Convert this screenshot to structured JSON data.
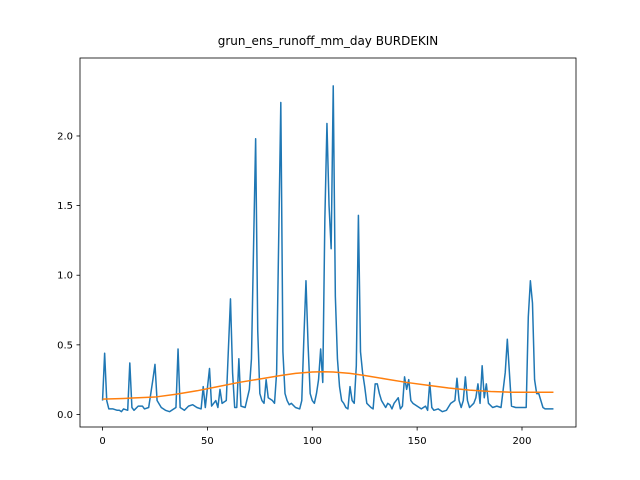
{
  "chart_data": {
    "type": "line",
    "title": "grun_ens_runoff_mm_day BURDEKIN",
    "xlim": [
      -10.75,
      225.75
    ],
    "xticks": [
      0,
      50,
      100,
      150,
      200
    ],
    "ylim": [
      -0.09,
      2.56
    ],
    "yticks": [
      {
        "value": 0,
        "label": "0.0"
      },
      0.5,
      {
        "value": 1,
        "label": "1.0"
      },
      1.5,
      {
        "value": 2,
        "label": "2.0"
      }
    ],
    "grid": false,
    "series": [
      {
        "color": "#1f77b4",
        "x": [
          0,
          1,
          2,
          3,
          5,
          7,
          8,
          9,
          10,
          12,
          13,
          14,
          15,
          17,
          19,
          20,
          22,
          24,
          25,
          26,
          28,
          30,
          32,
          34,
          35,
          36,
          37,
          39,
          41,
          43,
          45,
          47,
          48,
          49,
          51,
          52,
          54,
          55,
          56,
          57,
          59,
          61,
          62,
          63,
          64,
          65,
          66,
          68,
          70,
          71,
          72,
          73,
          74,
          75,
          76,
          77,
          78,
          79,
          81,
          82,
          83,
          85,
          86,
          87,
          88,
          89,
          90,
          92,
          94,
          95,
          96,
          97,
          98,
          99,
          100,
          101,
          102,
          103,
          104,
          105,
          106,
          107,
          108,
          109,
          110,
          111,
          112,
          113,
          114,
          115,
          116,
          117,
          118,
          119,
          120,
          121,
          122,
          123,
          124,
          125,
          126,
          128,
          129,
          130,
          131,
          132,
          133,
          135,
          136,
          137,
          138,
          139,
          140,
          141,
          142,
          143,
          144,
          145,
          146,
          147,
          148,
          150,
          152,
          154,
          155,
          156,
          157,
          158,
          160,
          162,
          164,
          166,
          168,
          169,
          170,
          171,
          172,
          173,
          174,
          175,
          177,
          178,
          179,
          180,
          181,
          182,
          183,
          184,
          186,
          188,
          190,
          192,
          193,
          194,
          195,
          197,
          199,
          201,
          202,
          203,
          204,
          205,
          206,
          207,
          208,
          209,
          210,
          211,
          213,
          215
        ],
        "values": [
          0.1,
          0.44,
          0.1,
          0.04,
          0.04,
          0.03,
          0.03,
          0.02,
          0.04,
          0.03,
          0.37,
          0.05,
          0.03,
          0.06,
          0.06,
          0.04,
          0.05,
          0.25,
          0.36,
          0.1,
          0.05,
          0.03,
          0.02,
          0.04,
          0.05,
          0.47,
          0.05,
          0.03,
          0.06,
          0.07,
          0.05,
          0.04,
          0.2,
          0.05,
          0.33,
          0.06,
          0.1,
          0.05,
          0.18,
          0.08,
          0.1,
          0.83,
          0.3,
          0.05,
          0.05,
          0.4,
          0.06,
          0.05,
          0.18,
          0.4,
          1.2,
          1.98,
          0.6,
          0.15,
          0.1,
          0.08,
          0.25,
          0.12,
          0.1,
          0.08,
          0.3,
          2.24,
          0.45,
          0.15,
          0.1,
          0.07,
          0.08,
          0.05,
          0.04,
          0.1,
          0.55,
          0.96,
          0.5,
          0.15,
          0.1,
          0.08,
          0.15,
          0.25,
          0.47,
          0.23,
          1.4,
          2.09,
          1.5,
          1.19,
          2.36,
          0.85,
          0.4,
          0.2,
          0.1,
          0.08,
          0.05,
          0.04,
          0.2,
          0.1,
          0.08,
          0.35,
          1.43,
          0.45,
          0.3,
          0.2,
          0.08,
          0.05,
          0.04,
          0.22,
          0.22,
          0.15,
          0.1,
          0.05,
          0.08,
          0.07,
          0.04,
          0.08,
          0.1,
          0.12,
          0.04,
          0.06,
          0.27,
          0.18,
          0.25,
          0.1,
          0.08,
          0.06,
          0.04,
          0.06,
          0.03,
          0.23,
          0.05,
          0.03,
          0.04,
          0.02,
          0.03,
          0.08,
          0.1,
          0.26,
          0.1,
          0.05,
          0.1,
          0.27,
          0.1,
          0.05,
          0.08,
          0.12,
          0.22,
          0.08,
          0.35,
          0.12,
          0.22,
          0.08,
          0.05,
          0.06,
          0.05,
          0.3,
          0.54,
          0.3,
          0.06,
          0.05,
          0.05,
          0.05,
          0.05,
          0.7,
          0.96,
          0.8,
          0.25,
          0.15,
          0.15,
          0.1,
          0.05,
          0.04,
          0.04,
          0.04
        ]
      },
      {
        "color": "#ff7f0e",
        "x": [
          0,
          10,
          25,
          35,
          45,
          55,
          65,
          75,
          85,
          92,
          100,
          105,
          110,
          118,
          125,
          135,
          145,
          155,
          165,
          175,
          185,
          195,
          205,
          215
        ],
        "values": [
          0.11,
          0.115,
          0.125,
          0.145,
          0.17,
          0.2,
          0.23,
          0.255,
          0.28,
          0.295,
          0.305,
          0.307,
          0.305,
          0.295,
          0.28,
          0.255,
          0.23,
          0.21,
          0.19,
          0.175,
          0.165,
          0.16,
          0.16,
          0.16
        ]
      }
    ]
  }
}
